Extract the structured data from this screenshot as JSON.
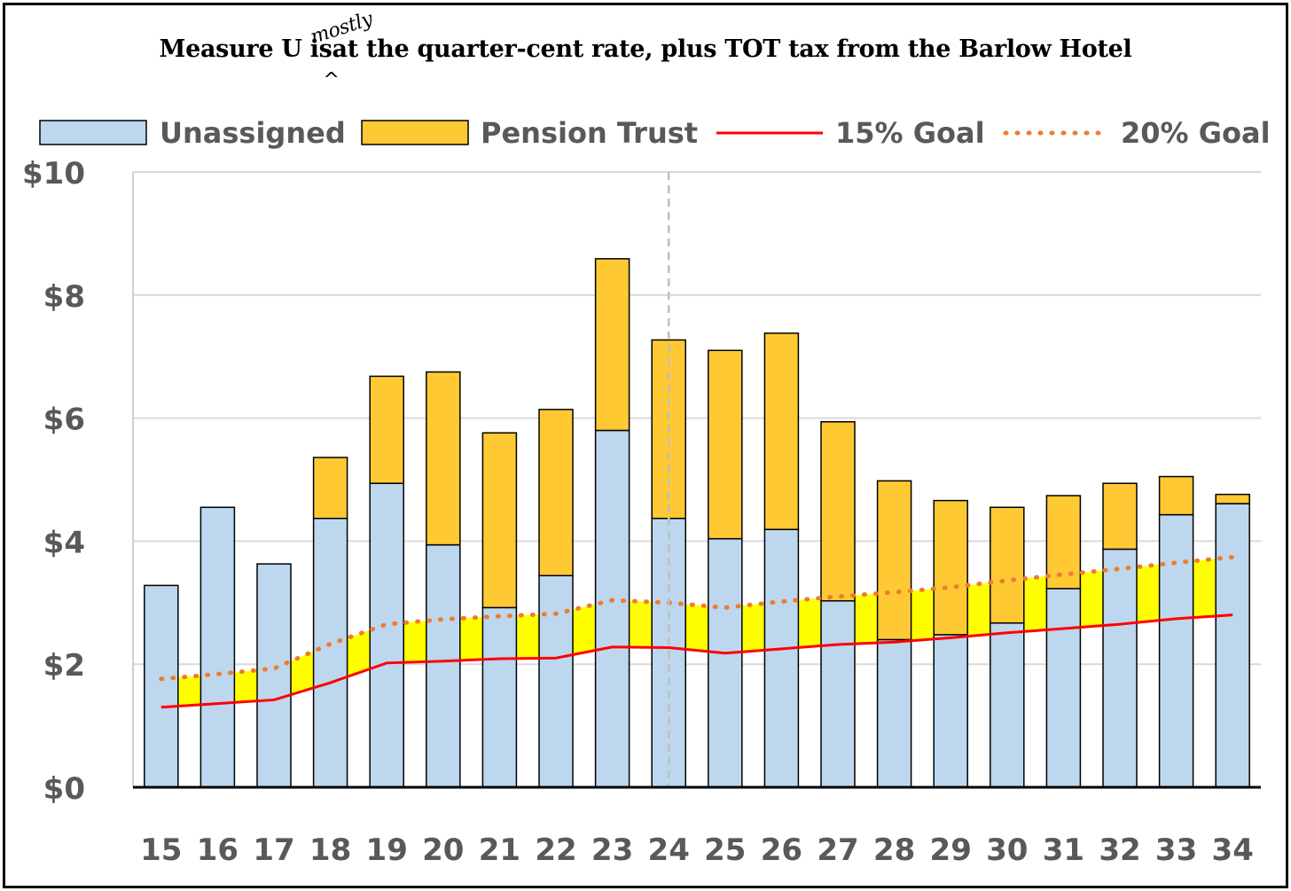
{
  "title": {
    "before": "Measure U is",
    "insert": "mostly",
    "caret": "^",
    "after": "at the quarter-cent rate, plus TOT tax from the Barlow Hotel"
  },
  "colors": {
    "unassigned": "#bdd7ee",
    "pension": "#ffc933",
    "fill_between": "#ffff00",
    "goal15": "#ff0000",
    "goal20": "#ed7d31",
    "grid": "#d9d9d9",
    "axis_text": "#595959",
    "divider": "#bfbfbf"
  },
  "chart_data": {
    "type": "bar",
    "stacked": true,
    "categories": [
      "15",
      "16",
      "17",
      "18",
      "19",
      "20",
      "21",
      "22",
      "23",
      "24",
      "25",
      "26",
      "27",
      "28",
      "29",
      "30",
      "31",
      "32",
      "33",
      "34"
    ],
    "series": [
      {
        "name": "Unassigned",
        "kind": "bar",
        "color": "#bdd7ee",
        "values": [
          3.28,
          4.55,
          3.63,
          4.37,
          4.94,
          3.94,
          2.92,
          3.44,
          5.8,
          4.37,
          4.04,
          4.19,
          3.03,
          2.4,
          2.48,
          2.67,
          3.23,
          3.87,
          4.43,
          4.61
        ]
      },
      {
        "name": "Pension Trust",
        "kind": "bar",
        "color": "#ffc933",
        "values": [
          0,
          0,
          0,
          0.99,
          1.74,
          2.81,
          2.84,
          2.7,
          2.79,
          2.9,
          3.06,
          3.19,
          2.91,
          2.58,
          2.18,
          1.88,
          1.51,
          1.07,
          0.62,
          0.15
        ]
      },
      {
        "name": "15% Goal",
        "kind": "line",
        "style": "solid",
        "color": "#ff0000",
        "values": [
          1.3,
          1.36,
          1.42,
          1.7,
          2.02,
          2.05,
          2.09,
          2.1,
          2.28,
          2.27,
          2.18,
          2.25,
          2.32,
          2.36,
          2.43,
          2.51,
          2.58,
          2.65,
          2.74,
          2.8
        ]
      },
      {
        "name": "20% Goal",
        "kind": "line",
        "style": "dotted",
        "color": "#ed7d31",
        "values": [
          1.76,
          1.84,
          1.93,
          2.33,
          2.65,
          2.73,
          2.78,
          2.82,
          3.04,
          3.0,
          2.92,
          3.02,
          3.1,
          3.17,
          3.25,
          3.36,
          3.46,
          3.55,
          3.65,
          3.74
        ]
      }
    ],
    "ylim": [
      0,
      10
    ],
    "yticks": [
      0,
      2,
      4,
      6,
      8,
      10
    ],
    "ytick_labels": [
      "$0",
      "$2",
      "$4",
      "$6",
      "$8",
      "$10"
    ],
    "grid": true,
    "legend_position": "top",
    "divider_after_category": "24"
  }
}
